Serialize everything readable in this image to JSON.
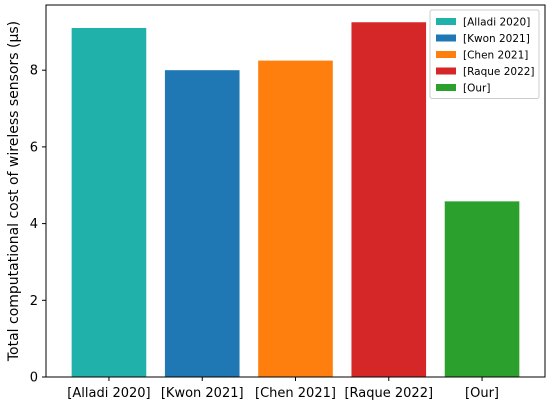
{
  "chart_data": {
    "type": "bar",
    "categories": [
      "[Alladi 2020]",
      "[Kwon 2021]",
      "[Chen 2021]",
      "[Raque 2022]",
      "[Our]"
    ],
    "values": [
      9.1,
      8.0,
      8.25,
      9.25,
      4.58
    ],
    "colors": [
      "#20b2aa",
      "#1f77b4",
      "#ff7f0e",
      "#d62728",
      "#2ca02c"
    ],
    "title": "",
    "xlabel": "",
    "ylabel": "Total computational cost of wireless sensors (μs)",
    "ylim": [
      0,
      9.7
    ],
    "yticks": [
      0,
      2,
      4,
      6,
      8
    ],
    "legend": {
      "position": "top-right",
      "entries": [
        "[Alladi 2020]",
        "[Kwon 2021]",
        "[Chen 2021]",
        "[Raque 2022]",
        "[Our]"
      ]
    },
    "grid": false
  }
}
